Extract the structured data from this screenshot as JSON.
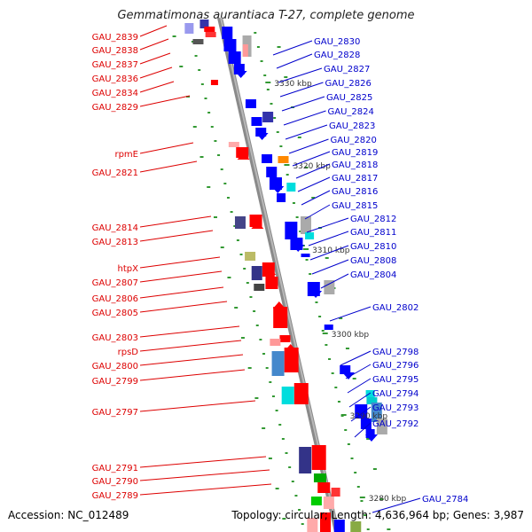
{
  "title": "Gemmatimonas aurantiaca T-27, complete genome",
  "footer": {
    "accession": "Accession: NC_012489",
    "summary": "Topology: circular; Length: 4,636,964 bp; Genes: 3,987"
  },
  "colors": {
    "left_label": "#dd0000",
    "right_label": "#0000cc",
    "forward_gene": "#ff0000",
    "reverse_gene": "#0000ff",
    "backbone": "#888888",
    "tick": "#339933"
  },
  "kbp_markers": [
    "3330 kbp",
    "3320 kbp",
    "3310 kbp",
    "3300 kbp",
    "3290 kbp",
    "3280 kbp"
  ],
  "left_labels": [
    "GAU_2839",
    "GAU_2838",
    "GAU_2837",
    "GAU_2836",
    "GAU_2834",
    "GAU_2829",
    "rpmE",
    "GAU_2821",
    "GAU_2814",
    "GAU_2813",
    "htpX",
    "GAU_2807",
    "GAU_2806",
    "GAU_2805",
    "GAU_2803",
    "rpsD",
    "GAU_2800",
    "GAU_2799",
    "GAU_2797",
    "GAU_2791",
    "GAU_2790",
    "GAU_2789"
  ],
  "right_labels": [
    "GAU_2830",
    "GAU_2828",
    "GAU_2827",
    "GAU_2826",
    "GAU_2825",
    "GAU_2824",
    "GAU_2823",
    "GAU_2820",
    "GAU_2819",
    "GAU_2818",
    "GAU_2817",
    "GAU_2816",
    "GAU_2815",
    "GAU_2812",
    "GAU_2811",
    "GAU_2810",
    "GAU_2808",
    "GAU_2804",
    "GAU_2802",
    "GAU_2798",
    "GAU_2796",
    "GAU_2795",
    "GAU_2794",
    "GAU_2793",
    "GAU_2792",
    "GAU_2784"
  ]
}
